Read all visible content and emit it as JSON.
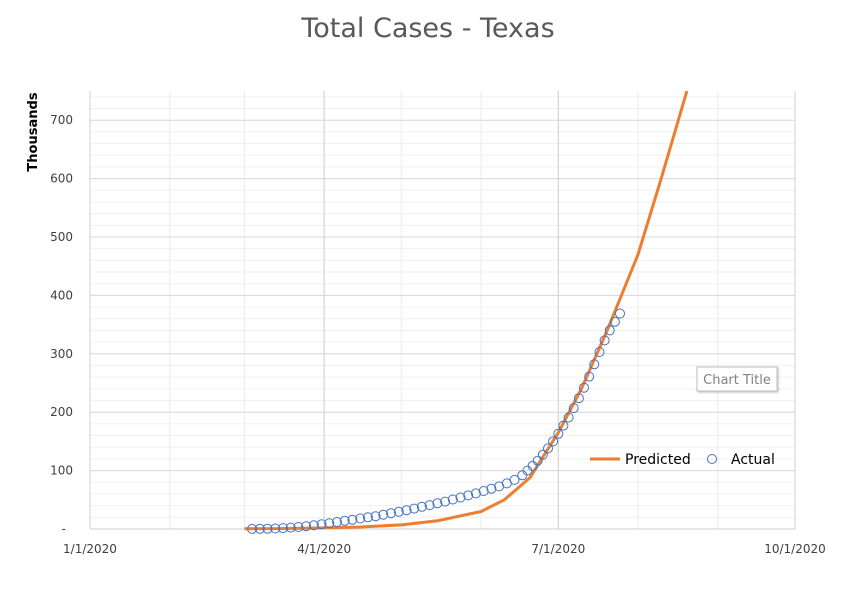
{
  "chart_data": {
    "type": "scatter",
    "title": "Total Cases - Texas",
    "xlabel": "",
    "ylabel": "Thousands",
    "x_ticks": [
      "1/1/2020",
      "4/1/2020",
      "7/1/2020",
      "10/1/2020"
    ],
    "y_ticks": [
      "-",
      "100",
      "200",
      "300",
      "400",
      "500",
      "600",
      "700"
    ],
    "ylim": [
      0,
      750
    ],
    "grid": true,
    "legend": "bottom-right",
    "floating_label": "Chart Title",
    "series": [
      {
        "name": "Predicted",
        "kind": "line",
        "color": "#ED7D31",
        "points": [
          [
            "2020-03-01",
            0.3
          ],
          [
            "2020-03-15",
            0.7
          ],
          [
            "2020-04-01",
            1.8
          ],
          [
            "2020-04-15",
            3.5
          ],
          [
            "2020-05-01",
            7
          ],
          [
            "2020-05-15",
            14
          ],
          [
            "2020-06-01",
            30
          ],
          [
            "2020-06-10",
            50
          ],
          [
            "2020-06-20",
            88
          ],
          [
            "2020-07-01",
            165
          ],
          [
            "2020-07-10",
            240
          ],
          [
            "2020-07-20",
            340
          ],
          [
            "2020-08-01",
            470
          ],
          [
            "2020-08-10",
            600
          ],
          [
            "2020-08-20",
            750
          ]
        ]
      },
      {
        "name": "Actual",
        "kind": "markers",
        "color": "#4472C4",
        "points": [
          [
            "2020-03-04",
            0.1
          ],
          [
            "2020-03-07",
            0.3
          ],
          [
            "2020-03-10",
            0.5
          ],
          [
            "2020-03-13",
            0.9
          ],
          [
            "2020-03-16",
            1.5
          ],
          [
            "2020-03-19",
            2.4
          ],
          [
            "2020-03-22",
            3.5
          ],
          [
            "2020-03-25",
            4.8
          ],
          [
            "2020-03-28",
            6.3
          ],
          [
            "2020-03-31",
            8.0
          ],
          [
            "2020-04-03",
            10.0
          ],
          [
            "2020-04-06",
            12.0
          ],
          [
            "2020-04-09",
            14.0
          ],
          [
            "2020-04-12",
            16.0
          ],
          [
            "2020-04-15",
            18.0
          ],
          [
            "2020-04-18",
            20.0
          ],
          [
            "2020-04-21",
            22.0
          ],
          [
            "2020-04-24",
            24.5
          ],
          [
            "2020-04-27",
            27.0
          ],
          [
            "2020-04-30",
            29.5
          ],
          [
            "2020-05-03",
            32.0
          ],
          [
            "2020-05-06",
            35.0
          ],
          [
            "2020-05-09",
            38.0
          ],
          [
            "2020-05-12",
            41.0
          ],
          [
            "2020-05-15",
            44.0
          ],
          [
            "2020-05-18",
            47.0
          ],
          [
            "2020-05-21",
            50.5
          ],
          [
            "2020-05-24",
            54.0
          ],
          [
            "2020-05-27",
            57.5
          ],
          [
            "2020-05-30",
            61.0
          ],
          [
            "2020-06-02",
            65.0
          ],
          [
            "2020-06-05",
            69.0
          ],
          [
            "2020-06-08",
            73.0
          ],
          [
            "2020-06-11",
            78.0
          ],
          [
            "2020-06-14",
            84.0
          ],
          [
            "2020-06-17",
            92.0
          ],
          [
            "2020-06-19",
            100.0
          ],
          [
            "2020-06-21",
            108.0
          ],
          [
            "2020-06-23",
            117.0
          ],
          [
            "2020-06-25",
            127.0
          ],
          [
            "2020-06-27",
            138.0
          ],
          [
            "2020-06-29",
            150.0
          ],
          [
            "2020-07-01",
            163.0
          ],
          [
            "2020-07-03",
            177.0
          ],
          [
            "2020-07-05",
            191.0
          ],
          [
            "2020-07-07",
            207.0
          ],
          [
            "2020-07-09",
            224.0
          ],
          [
            "2020-07-11",
            242.0
          ],
          [
            "2020-07-13",
            261.0
          ],
          [
            "2020-07-15",
            282.0
          ],
          [
            "2020-07-17",
            303.0
          ],
          [
            "2020-07-19",
            323.0
          ],
          [
            "2020-07-21",
            340.0
          ],
          [
            "2020-07-23",
            355.0
          ],
          [
            "2020-07-25",
            369.0
          ]
        ]
      }
    ]
  }
}
